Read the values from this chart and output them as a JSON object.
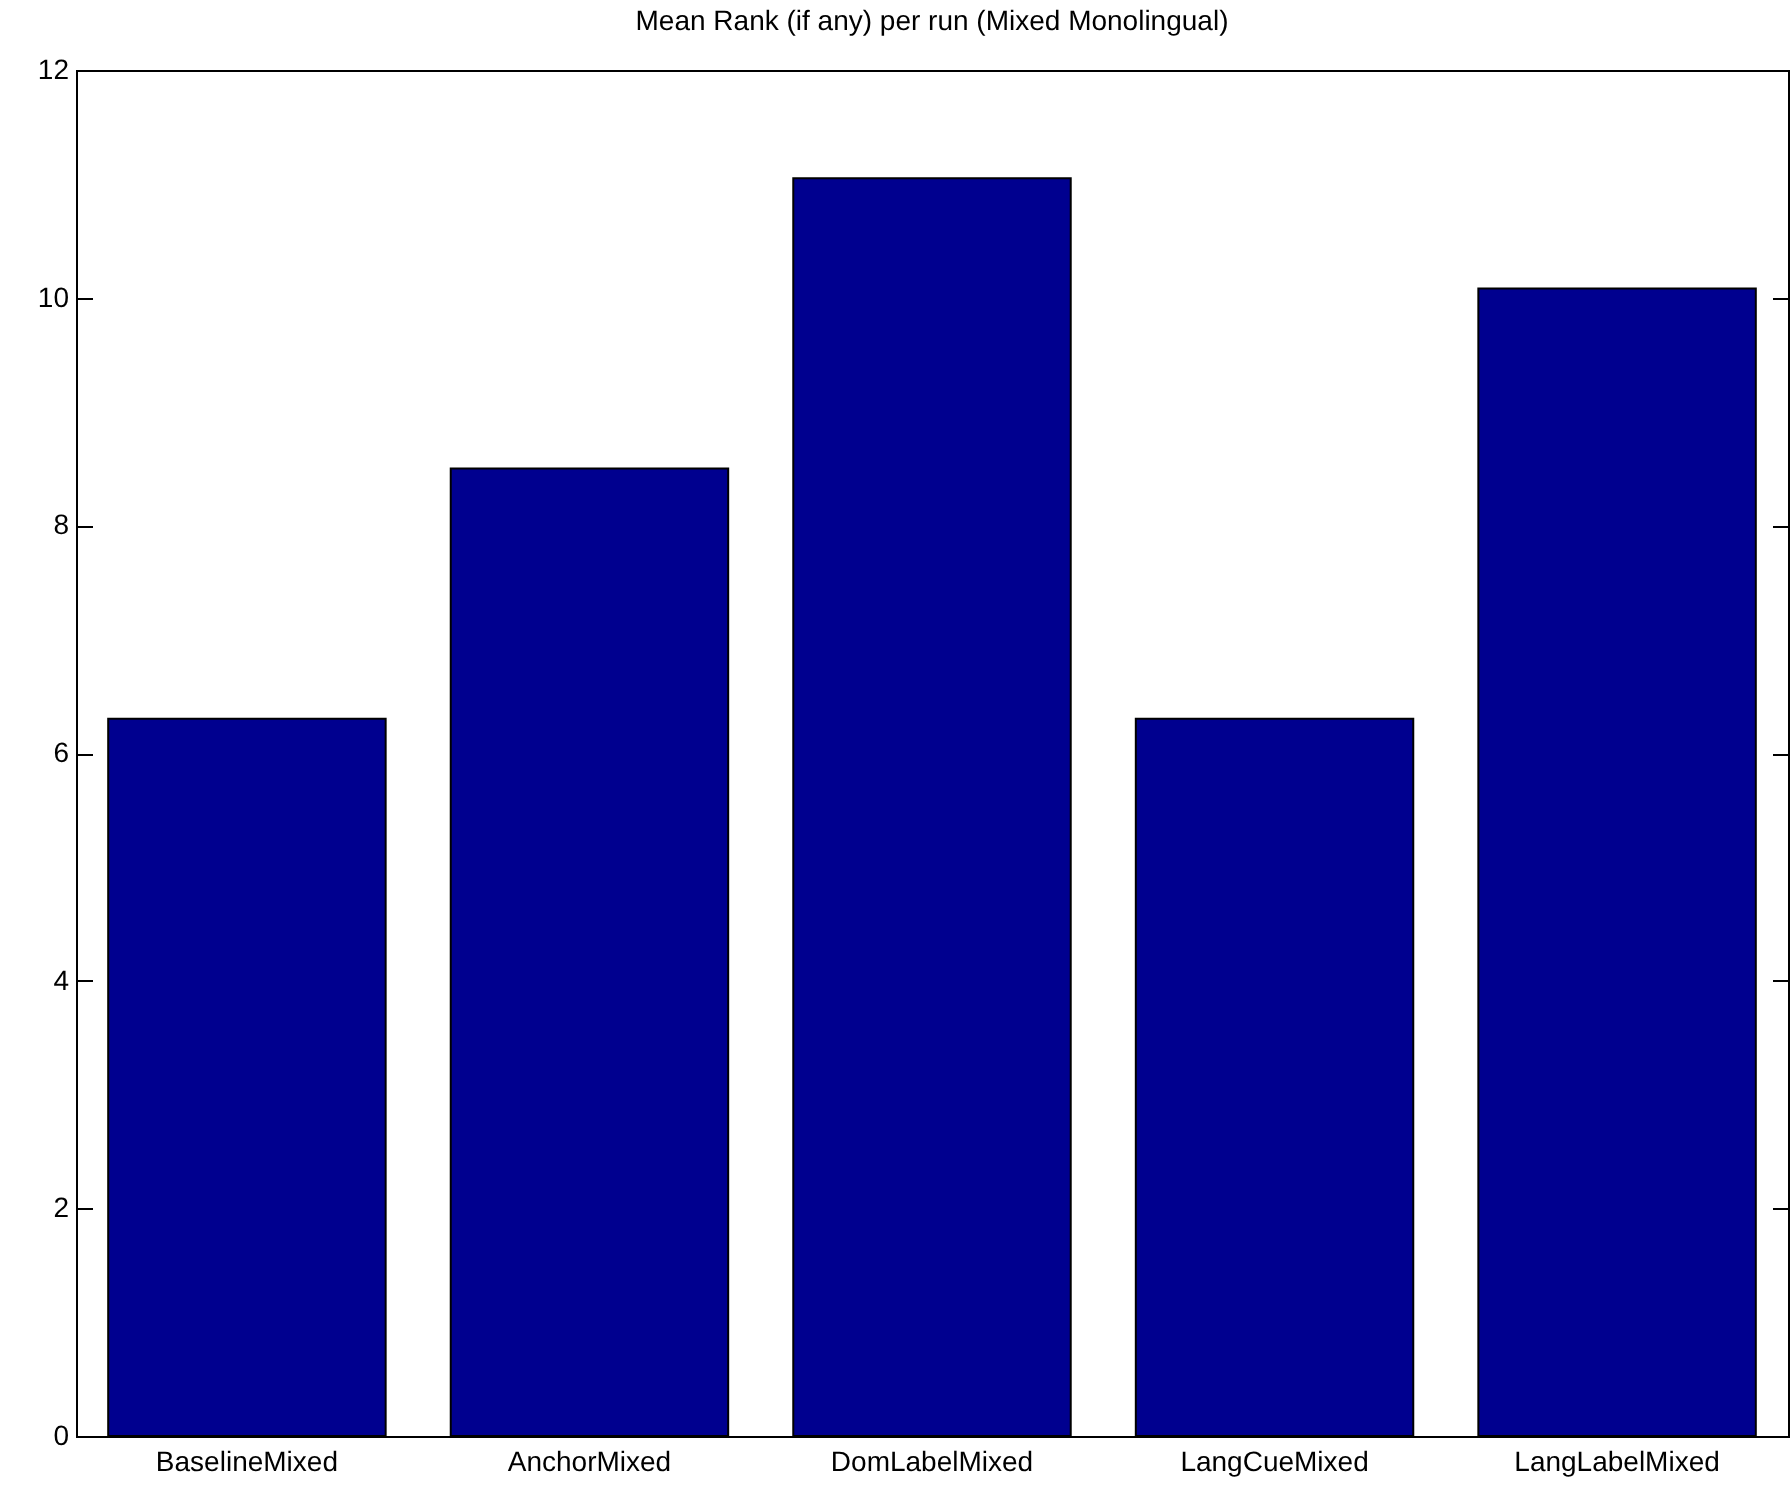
{
  "chart_data": {
    "type": "bar",
    "title": "Mean Rank (if any) per run (Mixed Monolingual)",
    "categories": [
      "BaselineMixed",
      "AnchorMixed",
      "DomLabelMixed",
      "LangCueMixed",
      "LangLabelMixed"
    ],
    "values": [
      6.3,
      8.5,
      11.05,
      6.3,
      10.08
    ],
    "color": "#00008f",
    "ylim": [
      0,
      12
    ],
    "yticks": [
      0,
      2,
      4,
      6,
      8,
      10,
      12
    ],
    "grid": false
  }
}
